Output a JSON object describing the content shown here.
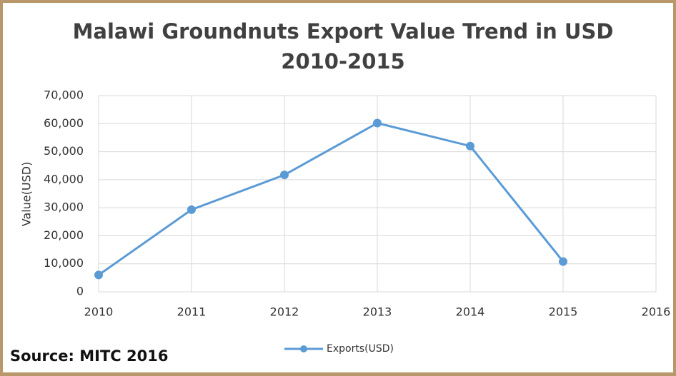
{
  "chart_data": {
    "type": "line",
    "title": [
      "Malawi Groundnuts Export Value Trend in USD",
      "2010-2015"
    ],
    "y_label": "Value(USD)",
    "annotation": "Source: MITC 2016",
    "x": [
      2010,
      2011,
      2012,
      2013,
      2014,
      2015
    ],
    "series": [
      {
        "name": "Exports(USD)",
        "color": "#5b9bd5",
        "values": [
          6000,
          29300,
          41700,
          60200,
          52000,
          10800
        ]
      }
    ],
    "xlim": [
      2010,
      2016
    ],
    "xticks": [
      2010,
      2011,
      2012,
      2013,
      2014,
      2015,
      2016
    ],
    "ylim": [
      0,
      70000
    ],
    "yticks": [
      0,
      {
        "value": 10000,
        "label": "10,000"
      },
      {
        "value": 20000,
        "label": "20,000"
      },
      {
        "value": 30000,
        "label": "30,000"
      },
      {
        "value": 40000,
        "label": "40,000"
      },
      {
        "value": 50000,
        "label": "50,000"
      },
      {
        "value": 60000,
        "label": "60,000"
      },
      {
        "value": 70000,
        "label": "70,000"
      }
    ],
    "grid": true,
    "legend": "bottom"
  }
}
